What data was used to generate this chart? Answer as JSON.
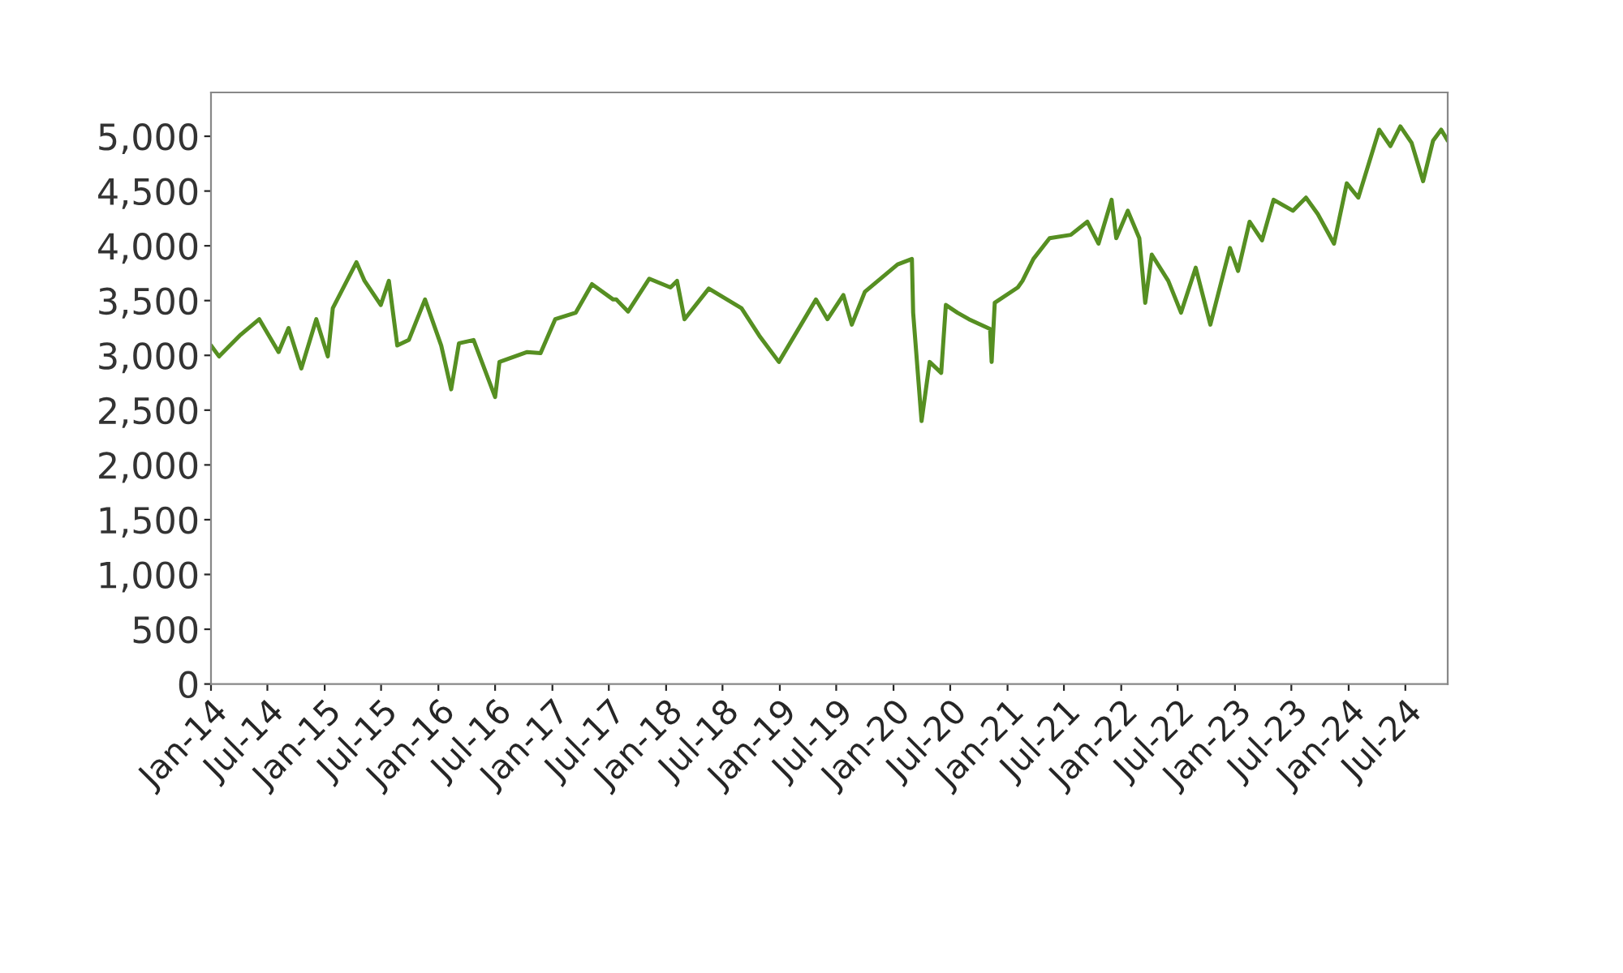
{
  "chart_data": {
    "type": "line",
    "x": [
      "2014-01-01",
      "2014-01-27",
      "2014-04-03",
      "2014-06-05",
      "2014-08-06",
      "2014-09-07",
      "2014-10-18",
      "2014-12-05",
      "2015-01-11",
      "2015-01-27",
      "2015-04-13",
      "2015-05-09",
      "2015-06-30",
      "2015-07-26",
      "2015-08-22",
      "2015-09-28",
      "2015-11-19",
      "2016-01-10",
      "2016-02-11",
      "2016-03-07",
      "2016-04-23",
      "2016-07-01",
      "2016-07-15",
      "2016-10-12",
      "2016-11-24",
      "2017-01-10",
      "2017-03-17",
      "2017-05-08",
      "2017-07-15",
      "2017-07-25",
      "2017-09-01",
      "2017-11-08",
      "2018-01-15",
      "2018-02-05",
      "2018-03-01",
      "2018-05-18",
      "2018-08-31",
      "2018-10-27",
      "2018-12-29",
      "2019-04-27",
      "2019-06-03",
      "2019-07-24",
      "2019-08-20",
      "2019-10-01",
      "2020-01-14",
      "2020-02-29",
      "2020-03-04",
      "2020-03-31",
      "2020-04-26",
      "2020-06-02",
      "2020-06-17",
      "2020-07-24",
      "2020-08-30",
      "2020-11-06",
      "2020-11-11",
      "2020-11-21",
      "2021-02-03",
      "2021-02-18",
      "2021-03-25",
      "2021-05-16",
      "2021-07-23",
      "2021-09-14",
      "2021-10-20",
      "2021-12-01",
      "2021-12-16",
      "2022-01-22",
      "2022-02-28",
      "2022-03-19",
      "2022-04-09",
      "2022-06-01",
      "2022-07-12",
      "2022-08-28",
      "2022-10-14",
      "2022-12-16",
      "2023-01-11",
      "2023-02-17",
      "2023-03-29",
      "2023-05-05",
      "2023-07-06",
      "2023-08-17",
      "2023-09-24",
      "2023-11-15",
      "2023-12-26",
      "2024-02-01",
      "2024-04-08",
      "2024-05-14",
      "2024-06-15",
      "2024-07-21",
      "2024-08-27",
      "2024-09-28",
      "2024-10-24",
      "2024-11-14"
    ],
    "series": [
      {
        "color": "#568f22",
        "values": [
          3090,
          2990,
          3180,
          3330,
          3030,
          3250,
          2880,
          3330,
          2990,
          3430,
          3850,
          3680,
          3460,
          3680,
          3090,
          3140,
          3510,
          3090,
          2690,
          3110,
          3140,
          2620,
          2940,
          3030,
          3020,
          3330,
          3390,
          3650,
          3510,
          3510,
          3400,
          3700,
          3620,
          3680,
          3330,
          3610,
          3430,
          3180,
          2940,
          3510,
          3330,
          3550,
          3280,
          3580,
          3830,
          3880,
          3390,
          2400,
          2940,
          2840,
          3460,
          3390,
          3330,
          3240,
          2940,
          3480,
          3620,
          3680,
          3880,
          4070,
          4100,
          4220,
          4020,
          4420,
          4070,
          4320,
          4070,
          3480,
          3920,
          3680,
          3390,
          3800,
          3280,
          3980,
          3770,
          4220,
          4050,
          4420,
          4320,
          4440,
          4290,
          4020,
          4570,
          4440,
          5060,
          4910,
          5090,
          4940,
          4590,
          4960,
          5060,
          4960
        ]
      }
    ],
    "xlim": [
      "2014-01-01",
      "2024-11-14"
    ],
    "xticks": [
      {
        "value": "2014-01",
        "label": "Jan-14"
      },
      {
        "value": "2014-07",
        "label": "Jul-14"
      },
      {
        "value": "2015-01",
        "label": "Jan-15"
      },
      {
        "value": "2015-07",
        "label": "Jul-15"
      },
      {
        "value": "2016-01",
        "label": "Jan-16"
      },
      {
        "value": "2016-07",
        "label": "Jul-16"
      },
      {
        "value": "2017-01",
        "label": "Jan-17"
      },
      {
        "value": "2017-07",
        "label": "Jul-17"
      },
      {
        "value": "2018-01",
        "label": "Jan-18"
      },
      {
        "value": "2018-07",
        "label": "Jul-18"
      },
      {
        "value": "2019-01",
        "label": "Jan-19"
      },
      {
        "value": "2019-07",
        "label": "Jul-19"
      },
      {
        "value": "2020-01",
        "label": "Jan-20"
      },
      {
        "value": "2020-07",
        "label": "Jul-20"
      },
      {
        "value": "2021-01",
        "label": "Jan-21"
      },
      {
        "value": "2021-07",
        "label": "Jul-21"
      },
      {
        "value": "2022-01",
        "label": "Jan-22"
      },
      {
        "value": "2022-07",
        "label": "Jul-22"
      },
      {
        "value": "2023-01",
        "label": "Jan-23"
      },
      {
        "value": "2023-07",
        "label": "Jul-23"
      },
      {
        "value": "2024-01",
        "label": "Jan-24"
      },
      {
        "value": "2024-07",
        "label": "Jul-24"
      }
    ],
    "ylim": [
      0,
      5400
    ],
    "yticks": [
      0,
      500,
      {
        "value": 1000,
        "label": "1,000"
      },
      {
        "value": 1500,
        "label": "1,500"
      },
      {
        "value": 2000,
        "label": "2,000"
      },
      {
        "value": 2500,
        "label": "2,500"
      },
      {
        "value": 3000,
        "label": "3,000"
      },
      {
        "value": 3500,
        "label": "3,500"
      },
      {
        "value": 4000,
        "label": "4,000"
      },
      {
        "value": 4500,
        "label": "4,500"
      },
      {
        "value": 5000,
        "label": "5,000"
      }
    ],
    "grid": false,
    "legend": false
  }
}
